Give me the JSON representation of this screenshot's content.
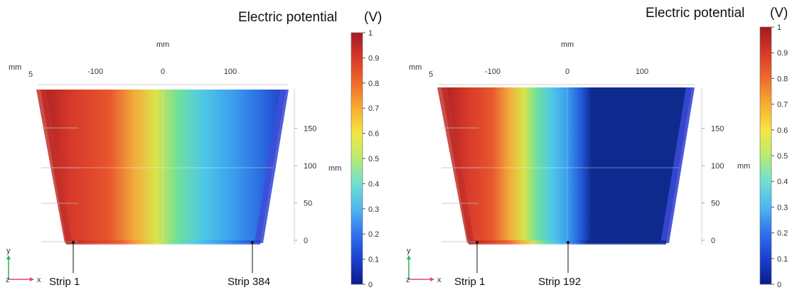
{
  "chart_data": [
    {
      "type": "heatmap",
      "title": "Electric potential",
      "unit": "(V)",
      "x_axis": {
        "unit": "mm",
        "ticks": [
          -100,
          0,
          100
        ],
        "corner_unit": "mm",
        "corner_value": 5
      },
      "y_axis": {
        "unit": "mm",
        "ticks": [
          0,
          50,
          100,
          150
        ]
      },
      "colorbar": {
        "min": 0,
        "max": 1,
        "ticks": [
          0,
          0.1,
          0.2,
          0.3,
          0.4,
          0.5,
          0.6,
          0.7,
          0.8,
          0.9,
          1
        ]
      },
      "annotations": [
        {
          "label": "Strip 1",
          "x_mm": -115
        },
        {
          "label": "Strip 384",
          "x_mm": 115
        }
      ],
      "axis_triad": {
        "y": "y",
        "z": "z",
        "x": "x"
      }
    },
    {
      "type": "heatmap",
      "title": "Electric potential",
      "unit": "(V)",
      "x_axis": {
        "unit": "mm",
        "ticks": [
          -100,
          0,
          100
        ],
        "corner_unit": "mm",
        "corner_value": 5
      },
      "y_axis": {
        "unit": "mm",
        "ticks": [
          0,
          50,
          100,
          150
        ]
      },
      "colorbar": {
        "min": 0,
        "max": 1,
        "ticks": [
          0,
          0.1,
          0.2,
          0.3,
          0.4,
          0.5,
          0.6,
          0.7,
          0.8,
          0.9,
          1
        ]
      },
      "annotations": [
        {
          "label": "Strip 1",
          "x_mm": -115
        },
        {
          "label": "Strip 192",
          "x_mm": 0
        }
      ],
      "axis_triad": {
        "y": "y",
        "z": "z",
        "x": "x"
      }
    }
  ]
}
